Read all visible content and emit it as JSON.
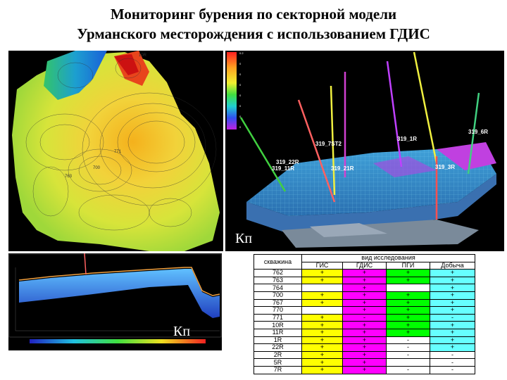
{
  "title": {
    "line1": "Мониторинг бурения по секторной модели",
    "line2": "Урманского месторождения с использованием ГДИС"
  },
  "labels": {
    "kp_model": "Кп",
    "kp_section": "Кп"
  },
  "model_wells": [
    {
      "label": "319_6R"
    },
    {
      "label": "319_1R"
    },
    {
      "label": "319_7ST2"
    },
    {
      "label": "319_22R"
    },
    {
      "label": "319_11R"
    },
    {
      "label": "319_21R"
    },
    {
      "label": "319_3R"
    }
  ],
  "table": {
    "header_well": "скважина",
    "header_group": "вид исследования",
    "columns": [
      "ГИС",
      "ГДИС",
      "ПГИ",
      "Добыча"
    ],
    "colors": {
      "ГИС": "#ffff00",
      "ГДИС": "#ff00ff",
      "ПГИ": "#00ff00",
      "Добыча": "#66ffff"
    },
    "rows": [
      {
        "well": "762",
        "values": [
          "+",
          "+",
          "+",
          "+"
        ]
      },
      {
        "well": "763",
        "values": [
          "+",
          "+",
          "+",
          "+"
        ]
      },
      {
        "well": "764",
        "values": [
          "",
          "+",
          "",
          "+"
        ]
      },
      {
        "well": "700",
        "values": [
          "+",
          "+",
          "+",
          "+"
        ]
      },
      {
        "well": "767",
        "values": [
          "+",
          "+",
          "+",
          "+"
        ]
      },
      {
        "well": "770",
        "values": [
          "",
          "+",
          "+",
          "+"
        ]
      },
      {
        "well": "771",
        "values": [
          "+",
          "-",
          "+",
          "-"
        ]
      },
      {
        "well": "10R",
        "values": [
          "+",
          "+",
          "+",
          "+"
        ]
      },
      {
        "well": "11R",
        "values": [
          "+",
          "+",
          "+",
          "+"
        ]
      },
      {
        "well": "1R",
        "values": [
          "+",
          "+",
          "-",
          "+"
        ]
      },
      {
        "well": "22R",
        "values": [
          "+",
          "+",
          "-",
          "+"
        ]
      },
      {
        "well": "2R",
        "values": [
          "+",
          "+",
          "-",
          "-"
        ]
      },
      {
        "well": "5R",
        "values": [
          "+",
          "+",
          "",
          "-"
        ]
      },
      {
        "well": "7R",
        "values": [
          "+",
          "+",
          "-",
          "-"
        ]
      }
    ]
  }
}
